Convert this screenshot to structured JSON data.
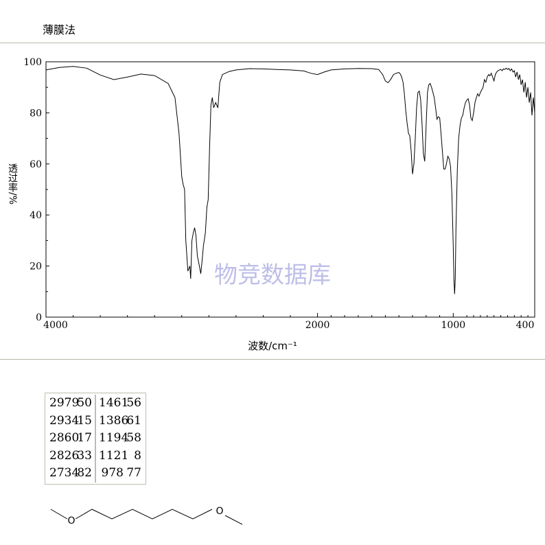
{
  "header": {
    "method": "薄膜法"
  },
  "chart_data": {
    "type": "line",
    "xlabel": "波数/cm⁻¹",
    "ylabel": "透过率/%",
    "watermark": "物竞数据库",
    "xlim": [
      4000,
      400
    ],
    "ylim": [
      0,
      100
    ],
    "xticks": [
      "4000",
      "2000",
      "1000",
      "400"
    ],
    "yticks": [
      "0",
      "20",
      "40",
      "60",
      "80",
      "100"
    ],
    "grid": false,
    "series": [
      {
        "values_xy": [
          [
            4000,
            96.8
          ],
          [
            3900,
            97.8
          ],
          [
            3800,
            98.2
          ],
          [
            3700,
            97.5
          ],
          [
            3600,
            94.8
          ],
          [
            3500,
            93.0
          ],
          [
            3400,
            94.0
          ],
          [
            3300,
            95.2
          ],
          [
            3200,
            94.6
          ],
          [
            3100,
            91.5
          ],
          [
            3050,
            86.0
          ],
          [
            3020,
            72.0
          ],
          [
            3000,
            55.0
          ],
          [
            2990,
            52.0
          ],
          [
            2979,
            50.0
          ],
          [
            2970,
            30.0
          ],
          [
            2955,
            18.0
          ],
          [
            2940,
            20.0
          ],
          [
            2934,
            15.0
          ],
          [
            2925,
            30.0
          ],
          [
            2915,
            33.0
          ],
          [
            2905,
            35.0
          ],
          [
            2895,
            32.0
          ],
          [
            2885,
            24.0
          ],
          [
            2870,
            20.0
          ],
          [
            2860,
            17.0
          ],
          [
            2850,
            22.0
          ],
          [
            2840,
            28.0
          ],
          [
            2826,
            33.0
          ],
          [
            2815,
            43.0
          ],
          [
            2805,
            46.0
          ],
          [
            2795,
            66.0
          ],
          [
            2785,
            83.0
          ],
          [
            2775,
            86.0
          ],
          [
            2765,
            82.0
          ],
          [
            2750,
            84.0
          ],
          [
            2734,
            82.0
          ],
          [
            2720,
            92.0
          ],
          [
            2700,
            95.0
          ],
          [
            2650,
            96.2
          ],
          [
            2600,
            96.8
          ],
          [
            2500,
            97.3
          ],
          [
            2400,
            97.2
          ],
          [
            2300,
            97.0
          ],
          [
            2200,
            96.8
          ],
          [
            2100,
            96.4
          ],
          [
            2050,
            95.5
          ],
          [
            2000,
            95.0
          ],
          [
            1950,
            96.0
          ],
          [
            1900,
            96.8
          ],
          [
            1800,
            97.2
          ],
          [
            1700,
            97.4
          ],
          [
            1600,
            97.3
          ],
          [
            1550,
            97.0
          ],
          [
            1520,
            95.0
          ],
          [
            1500,
            92.5
          ],
          [
            1480,
            91.8
          ],
          [
            1460,
            93.2
          ],
          [
            1440,
            95.0
          ],
          [
            1420,
            95.5
          ],
          [
            1400,
            95.8
          ],
          [
            1390,
            95.2
          ],
          [
            1380,
            94.0
          ],
          [
            1370,
            92.0
          ],
          [
            1360,
            87.5
          ],
          [
            1350,
            81.0
          ],
          [
            1340,
            76.0
          ],
          [
            1330,
            72.0
          ],
          [
            1320,
            71.0
          ],
          [
            1310,
            65.0
          ],
          [
            1300,
            56.0
          ],
          [
            1290,
            60.0
          ],
          [
            1280,
            70.0
          ],
          [
            1270,
            82.0
          ],
          [
            1260,
            88.0
          ],
          [
            1250,
            88.5
          ],
          [
            1240,
            85.0
          ],
          [
            1230,
            76.0
          ],
          [
            1220,
            64.0
          ],
          [
            1210,
            61.0
          ],
          [
            1200,
            75.0
          ],
          [
            1190,
            88.0
          ],
          [
            1180,
            91.0
          ],
          [
            1170,
            91.5
          ],
          [
            1160,
            90.0
          ],
          [
            1150,
            88.0
          ],
          [
            1140,
            86.0
          ],
          [
            1130,
            82.0
          ],
          [
            1120,
            77.5
          ],
          [
            1110,
            78.5
          ],
          [
            1100,
            78.0
          ],
          [
            1090,
            72.0
          ],
          [
            1080,
            65.0
          ],
          [
            1070,
            58.0
          ],
          [
            1060,
            58.0
          ],
          [
            1050,
            60.0
          ],
          [
            1040,
            63.0
          ],
          [
            1030,
            62.0
          ],
          [
            1020,
            59.0
          ],
          [
            1010,
            48.0
          ],
          [
            1000,
            28.0
          ],
          [
            995,
            15.0
          ],
          [
            990,
            9.0
          ],
          [
            985,
            15.0
          ],
          [
            980,
            35.0
          ],
          [
            970,
            58.0
          ],
          [
            960,
            70.0
          ],
          [
            950,
            75.0
          ],
          [
            940,
            78.0
          ],
          [
            930,
            79.0
          ],
          [
            920,
            82.0
          ],
          [
            910,
            84.0
          ],
          [
            900,
            85.0
          ],
          [
            890,
            85.5
          ],
          [
            880,
            83.0
          ],
          [
            870,
            78.0
          ],
          [
            860,
            77.0
          ],
          [
            850,
            80.0
          ],
          [
            840,
            84.0
          ],
          [
            830,
            86.0
          ],
          [
            820,
            87.5
          ],
          [
            810,
            86.5
          ],
          [
            800,
            88.0
          ],
          [
            790,
            89.0
          ],
          [
            780,
            90.0
          ],
          [
            770,
            93.0
          ],
          [
            760,
            92.0
          ],
          [
            750,
            94.0
          ],
          [
            740,
            95.0
          ],
          [
            730,
            94.5
          ],
          [
            720,
            95.5
          ],
          [
            710,
            94.0
          ],
          [
            700,
            92.5
          ],
          [
            690,
            95.0
          ],
          [
            680,
            96.0
          ],
          [
            670,
            96.5
          ],
          [
            660,
            96.8
          ],
          [
            650,
            97.0
          ],
          [
            640,
            96.5
          ],
          [
            630,
            97.2
          ],
          [
            620,
            97.0
          ],
          [
            610,
            97.5
          ],
          [
            600,
            97.0
          ],
          [
            590,
            97.4
          ],
          [
            580,
            96.5
          ],
          [
            570,
            97.2
          ],
          [
            560,
            96.0
          ],
          [
            550,
            96.5
          ],
          [
            540,
            94.0
          ],
          [
            530,
            96.0
          ],
          [
            520,
            93.0
          ],
          [
            510,
            95.0
          ],
          [
            500,
            91.0
          ],
          [
            490,
            93.0
          ],
          [
            480,
            88.0
          ],
          [
            470,
            92.0
          ],
          [
            460,
            86.0
          ],
          [
            450,
            90.0
          ],
          [
            440,
            84.0
          ],
          [
            430,
            88.0
          ],
          [
            420,
            79.0
          ],
          [
            410,
            86.0
          ],
          [
            400,
            80.0
          ]
        ]
      }
    ],
    "peak_table": {
      "left": [
        {
          "wavenumber": "2979",
          "intensity": "50"
        },
        {
          "wavenumber": "2934",
          "intensity": "15"
        },
        {
          "wavenumber": "2860",
          "intensity": "17"
        },
        {
          "wavenumber": "2826",
          "intensity": "33"
        },
        {
          "wavenumber": "2734",
          "intensity": "82"
        }
      ],
      "right": [
        {
          "wavenumber": "1461",
          "intensity": "56"
        },
        {
          "wavenumber": "1386",
          "intensity": "61"
        },
        {
          "wavenumber": "1194",
          "intensity": "58"
        },
        {
          "wavenumber": "1121",
          "intensity": "8"
        },
        {
          "wavenumber": "978",
          "intensity": "77"
        }
      ]
    }
  },
  "structure": {
    "atoms": [
      "O",
      "O"
    ]
  }
}
